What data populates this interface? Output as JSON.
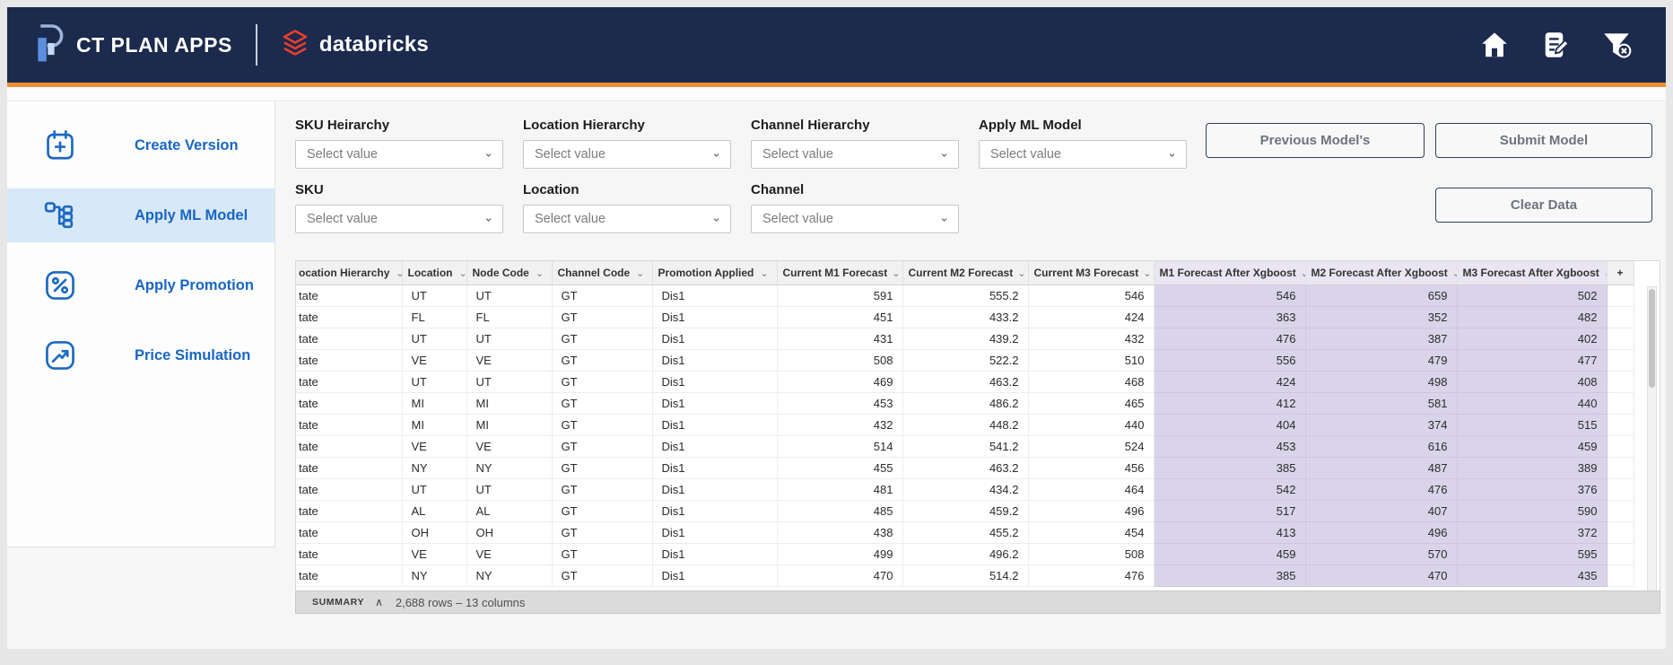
{
  "header": {
    "app_title": "CT PLAN APPS",
    "brand": "databricks"
  },
  "sidebar": {
    "items": [
      {
        "label": "Create Version",
        "icon": "calendar-plus-icon",
        "active": false
      },
      {
        "label": "Apply ML Model",
        "icon": "ml-tree-icon",
        "active": true
      },
      {
        "label": "Apply Promotion",
        "icon": "percent-icon",
        "active": false
      },
      {
        "label": "Price Simulation",
        "icon": "trend-up-icon",
        "active": false
      }
    ]
  },
  "filters": {
    "fields": [
      {
        "label": "SKU Heirarchy",
        "placeholder": "Select value"
      },
      {
        "label": "Location Hierarchy",
        "placeholder": "Select value"
      },
      {
        "label": "Channel Hierarchy",
        "placeholder": "Select value"
      },
      {
        "label": "Apply ML Model",
        "placeholder": "Select value"
      },
      {
        "label": "SKU",
        "placeholder": "Select value"
      },
      {
        "label": "Location",
        "placeholder": "Select value"
      },
      {
        "label": "Channel",
        "placeholder": "Select value"
      }
    ]
  },
  "actions": {
    "previous_label": "Previous Model's",
    "submit_label": "Submit Model",
    "clear_label": "Clear Data"
  },
  "table": {
    "columns": [
      "ocation Hierarchy",
      "Location",
      "Node Code",
      "Channel Code",
      "Promotion Applied",
      "Current M1 Forecast",
      "Current M2 Forecast",
      "Current M3 Forecast",
      "M1 Forecast After Xgboost",
      "M2 Forecast After Xgboost",
      "M3 Forecast After Xgboost",
      "+"
    ],
    "rows": [
      [
        "tate",
        "UT",
        "UT",
        "GT",
        "Dis1",
        "591",
        "555.2",
        "546",
        "546",
        "659",
        "502",
        ""
      ],
      [
        "tate",
        "FL",
        "FL",
        "GT",
        "Dis1",
        "451",
        "433.2",
        "424",
        "363",
        "352",
        "482",
        ""
      ],
      [
        "tate",
        "UT",
        "UT",
        "GT",
        "Dis1",
        "431",
        "439.2",
        "432",
        "476",
        "387",
        "402",
        ""
      ],
      [
        "tate",
        "VE",
        "VE",
        "GT",
        "Dis1",
        "508",
        "522.2",
        "510",
        "556",
        "479",
        "477",
        ""
      ],
      [
        "tate",
        "UT",
        "UT",
        "GT",
        "Dis1",
        "469",
        "463.2",
        "468",
        "424",
        "498",
        "408",
        ""
      ],
      [
        "tate",
        "MI",
        "MI",
        "GT",
        "Dis1",
        "453",
        "486.2",
        "465",
        "412",
        "581",
        "440",
        ""
      ],
      [
        "tate",
        "MI",
        "MI",
        "GT",
        "Dis1",
        "432",
        "448.2",
        "440",
        "404",
        "374",
        "515",
        ""
      ],
      [
        "tate",
        "VE",
        "VE",
        "GT",
        "Dis1",
        "514",
        "541.2",
        "524",
        "453",
        "616",
        "459",
        ""
      ],
      [
        "tate",
        "NY",
        "NY",
        "GT",
        "Dis1",
        "455",
        "463.2",
        "456",
        "385",
        "487",
        "389",
        ""
      ],
      [
        "tate",
        "UT",
        "UT",
        "GT",
        "Dis1",
        "481",
        "434.2",
        "464",
        "542",
        "476",
        "376",
        ""
      ],
      [
        "tate",
        "AL",
        "AL",
        "GT",
        "Dis1",
        "485",
        "459.2",
        "496",
        "517",
        "407",
        "590",
        ""
      ],
      [
        "tate",
        "OH",
        "OH",
        "GT",
        "Dis1",
        "438",
        "455.2",
        "454",
        "413",
        "496",
        "372",
        ""
      ],
      [
        "tate",
        "VE",
        "VE",
        "GT",
        "Dis1",
        "499",
        "496.2",
        "508",
        "459",
        "570",
        "595",
        ""
      ],
      [
        "tate",
        "NY",
        "NY",
        "GT",
        "Dis1",
        "470",
        "514.2",
        "476",
        "385",
        "470",
        "435",
        ""
      ]
    ],
    "summary_label": "SUMMARY",
    "summary_text": "2,688 rows – 13 columns"
  },
  "icons": {
    "top_right": [
      "home-icon",
      "notes-icon",
      "clear-filter-icon"
    ],
    "dropdown_chevron": "⌄",
    "summary_collapse": "∧"
  },
  "colors": {
    "header_bg": "#1b2a4d",
    "accent_orange": "#ee8d30",
    "brand_red": "#ee3d2c",
    "link_blue": "#1866c4",
    "active_item_bg": "#d7e8f8",
    "xgboost_cell_bg": "#d9d4e9",
    "xgboost_header_bg": "#e9e5f2",
    "summary_bar_bg": "#dbdbdb"
  }
}
